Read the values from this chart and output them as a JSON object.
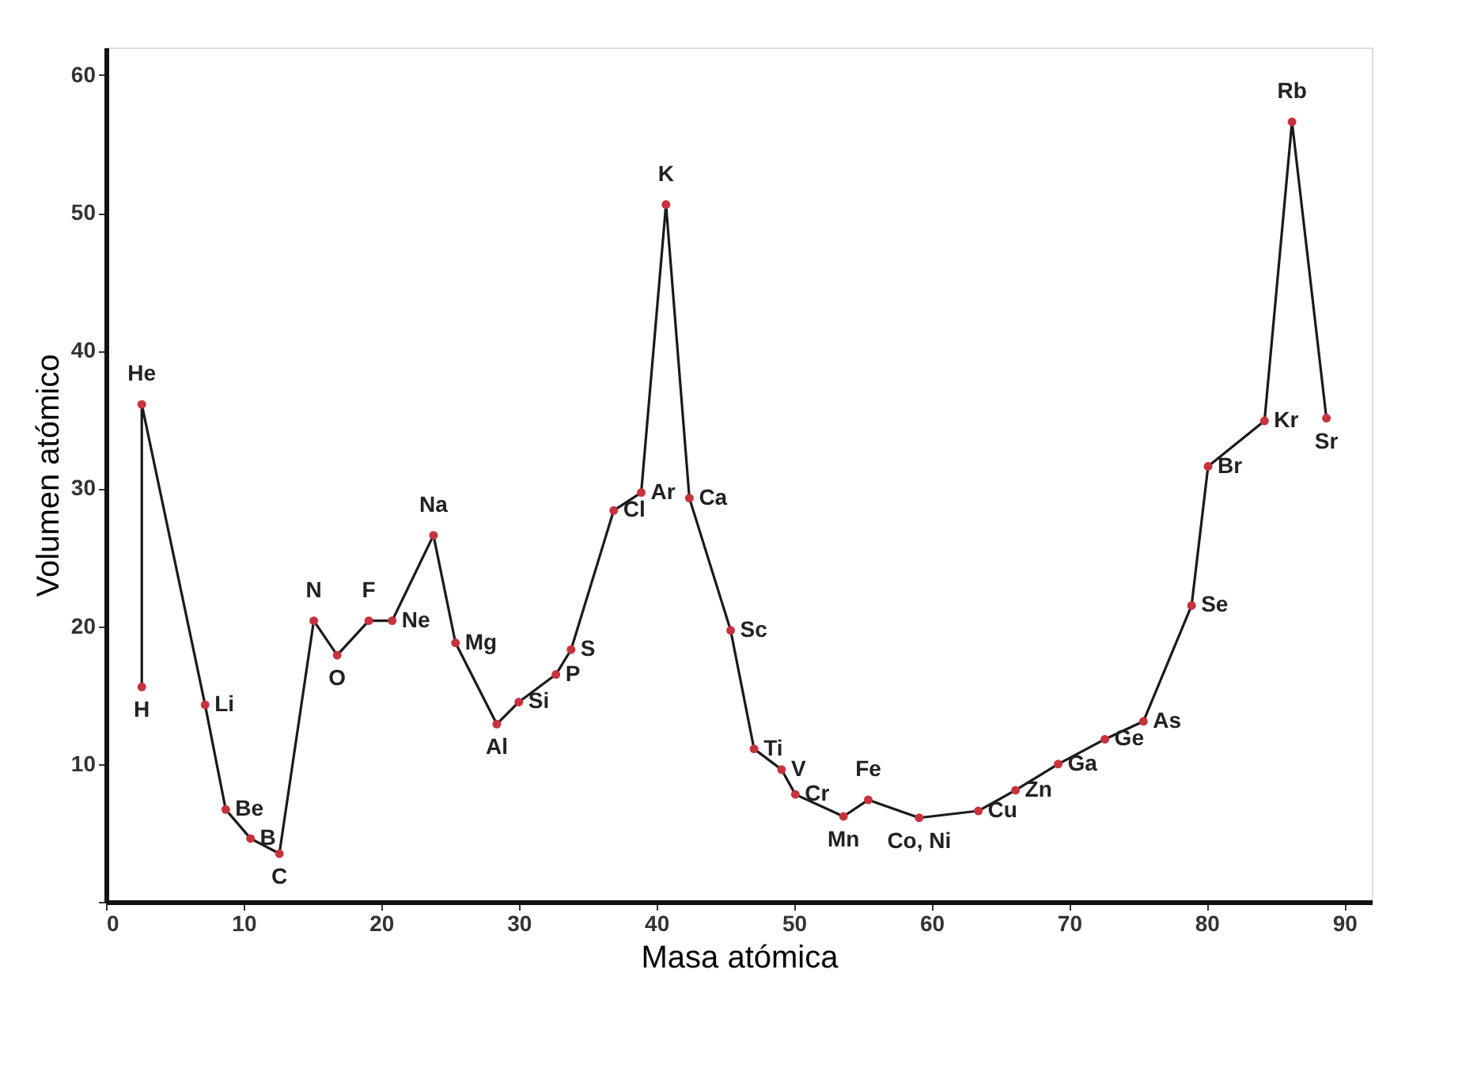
{
  "chart_data": {
    "type": "line",
    "xlabel": "Masa atómica",
    "ylabel": "Volumen atómico",
    "xlim": [
      0,
      92
    ],
    "ylim": [
      0,
      62
    ],
    "xticks": [
      0,
      10,
      20,
      30,
      40,
      50,
      60,
      70,
      80,
      90
    ],
    "yticks": [
      {
        "value": 0,
        "label": null
      },
      10,
      20,
      30,
      40,
      50,
      60
    ],
    "grid": false,
    "marker": "circle",
    "line_style": "solid",
    "series": [
      {
        "color": "#1a1a1a",
        "x": [
          2.6,
          2.6,
          7.2,
          8.7,
          10.5,
          12.6,
          15.1,
          16.8,
          19.1,
          20.8,
          23.8,
          25.4,
          28.4,
          30.0,
          32.7,
          33.8,
          36.9,
          38.9,
          40.7,
          42.4,
          45.4,
          47.1,
          49.1,
          50.1,
          53.6,
          55.4,
          59.1,
          63.4,
          66.1,
          69.2,
          72.6,
          75.4,
          78.9,
          80.1,
          84.2,
          86.2,
          88.7
        ],
        "values": [
          15.6,
          36.1,
          14.3,
          6.7,
          4.6,
          3.5,
          20.4,
          17.9,
          20.4,
          20.4,
          26.6,
          18.8,
          12.9,
          14.5,
          16.5,
          18.3,
          28.4,
          29.7,
          50.6,
          29.3,
          19.7,
          11.1,
          9.6,
          7.8,
          6.2,
          7.4,
          6.1,
          6.6,
          8.1,
          10.0,
          11.8,
          13.1,
          21.5,
          31.6,
          34.9,
          56.6,
          35.1
        ],
        "colors": [
          "#c8323c",
          "#c8323c",
          "#c8323c",
          "#c8323c",
          "#c8323c",
          "#c8323c",
          "#c8323c",
          "#c8323c",
          "#c8323c",
          "#c8323c",
          "#c8323c",
          "#c8323c",
          "#c8323c",
          "#c8323c",
          "#c8323c",
          "#c8323c",
          "#c8323c",
          "#c8323c",
          "#c8323c",
          "#c8323c",
          "#c8323c",
          "#c8323c",
          "#c8323c",
          "#c8323c",
          "#c8323c",
          "#c8323c",
          "#c8323c",
          "#c8323c",
          "#c8323c",
          "#c8323c",
          "#c8323c",
          "#c8323c",
          "#c8323c",
          "#c8323c",
          "#c8323c",
          "#c8323c",
          "#c8323c"
        ]
      }
    ],
    "annotations": [
      {
        "text": "H",
        "x": 2.6,
        "y": 15.6
      },
      {
        "text": "He",
        "x": 2.6,
        "y": 36.1
      },
      {
        "text": "Li",
        "x": 7.2,
        "y": 14.3
      },
      {
        "text": "Be",
        "x": 8.7,
        "y": 6.7
      },
      {
        "text": "B",
        "x": 10.5,
        "y": 4.6
      },
      {
        "text": "C",
        "x": 12.6,
        "y": 3.5
      },
      {
        "text": "N",
        "x": 15.1,
        "y": 20.4
      },
      {
        "text": "O",
        "x": 16.8,
        "y": 17.9
      },
      {
        "text": "F",
        "x": 19.1,
        "y": 20.4
      },
      {
        "text": "Ne",
        "x": 20.8,
        "y": 20.4
      },
      {
        "text": "Na",
        "x": 23.8,
        "y": 26.6
      },
      {
        "text": "Mg",
        "x": 25.4,
        "y": 18.8
      },
      {
        "text": "Al",
        "x": 28.4,
        "y": 12.9
      },
      {
        "text": "Si",
        "x": 30.0,
        "y": 14.5
      },
      {
        "text": "P",
        "x": 32.7,
        "y": 16.5
      },
      {
        "text": "S",
        "x": 33.8,
        "y": 18.3
      },
      {
        "text": "Cl",
        "x": 36.9,
        "y": 28.4
      },
      {
        "text": "Ar",
        "x": 38.9,
        "y": 29.7
      },
      {
        "text": "K",
        "x": 40.7,
        "y": 50.6
      },
      {
        "text": "Ca",
        "x": 42.4,
        "y": 29.3
      },
      {
        "text": "Sc",
        "x": 45.4,
        "y": 19.7
      },
      {
        "text": "Ti",
        "x": 47.1,
        "y": 11.1
      },
      {
        "text": "V",
        "x": 49.1,
        "y": 9.6
      },
      {
        "text": "Cr",
        "x": 50.1,
        "y": 7.8
      },
      {
        "text": "Mn",
        "x": 53.6,
        "y": 6.2
      },
      {
        "text": "Fe",
        "x": 55.4,
        "y": 7.4
      },
      {
        "text": "Co, Ni",
        "x": 59.1,
        "y": 6.1
      },
      {
        "text": "Cu",
        "x": 63.4,
        "y": 6.6
      },
      {
        "text": "Zn",
        "x": 66.1,
        "y": 8.1
      },
      {
        "text": "Ga",
        "x": 69.2,
        "y": 10.0
      },
      {
        "text": "Ge",
        "x": 72.6,
        "y": 11.8
      },
      {
        "text": "As",
        "x": 75.4,
        "y": 13.1
      },
      {
        "text": "Se",
        "x": 78.9,
        "y": 21.5
      },
      {
        "text": "Br",
        "x": 80.1,
        "y": 31.6
      },
      {
        "text": "Kr",
        "x": 84.2,
        "y": 34.9
      },
      {
        "text": "Rb",
        "x": 86.2,
        "y": 56.6
      },
      {
        "text": "Sr",
        "x": 88.7,
        "y": 35.1
      }
    ]
  }
}
